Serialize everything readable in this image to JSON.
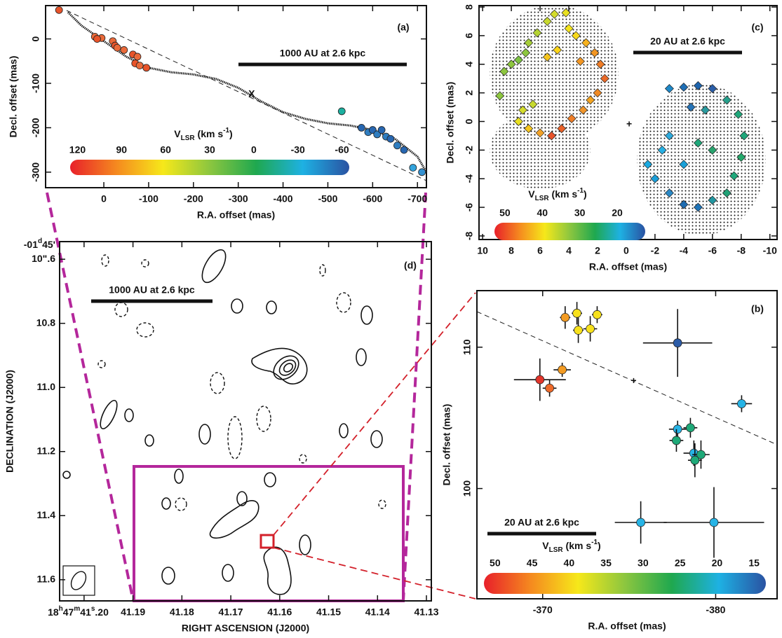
{
  "chart_data": [
    {
      "type": "scatter",
      "panel_label": "(a)",
      "xlabel": "R.A. offset (mas)",
      "ylabel": "Decl. offset (mas)",
      "xlim": [
        130,
        -720
      ],
      "ylim": [
        -335,
        75
      ],
      "xticks": [
        0,
        -100,
        -200,
        -300,
        -400,
        -500,
        -600,
        -700
      ],
      "yticks": [
        0,
        -100,
        -200,
        -300
      ],
      "x": [
        100,
        20,
        5,
        15,
        -20,
        -25,
        -30,
        -45,
        -65,
        -75,
        -70,
        -80,
        -95,
        -531,
        -575,
        -590,
        -600,
        -610,
        -620,
        -630,
        -640,
        -655,
        -670,
        -690,
        -710
      ],
      "values": [
        65,
        5,
        2,
        0,
        -5,
        -15,
        -20,
        -25,
        -35,
        -40,
        -55,
        -60,
        -65,
        -163,
        -200,
        -210,
        -205,
        -215,
        -205,
        -220,
        -225,
        -240,
        -250,
        -290,
        -300
      ],
      "colors": [
        "#e8542a",
        "#ea6a3a",
        "#ea6a3a",
        "#e8542a",
        "#ea6a3a",
        "#e8542a",
        "#ea6a3a",
        "#ea6a3a",
        "#e8542a",
        "#ea6a3a",
        "#e8542a",
        "#ea6a3a",
        "#e8542a",
        "#1bb0a0",
        "#2766b0",
        "#2f7dc0",
        "#2766b0",
        "#2f7dc0",
        "#2766b0",
        "#2f7dc0",
        "#2766b0",
        "#2f7dc0",
        "#2766b0",
        "#33a3dc",
        "#3390d0"
      ],
      "model": {
        "x": [
          80,
          50,
          0,
          -50,
          -100,
          -150,
          -200,
          -250,
          -300,
          -350,
          -400,
          -450,
          -500,
          -550,
          -600,
          -650,
          -700,
          -720
        ],
        "values": [
          60,
          30,
          -5,
          -40,
          -65,
          -75,
          -80,
          -90,
          -110,
          -140,
          -165,
          -180,
          -190,
          -195,
          -205,
          -225,
          -265,
          -300
        ]
      },
      "center_marker": {
        "label": "X",
        "x": -330,
        "y": -125
      },
      "scalebar": "1000 AU at 2.6 kpc",
      "colorbar": {
        "label": [
          "V",
          "LSR",
          " (km s",
          "-1",
          ")"
        ],
        "lim": [
          125,
          -65
        ],
        "ticks": [
          120,
          90,
          60,
          30,
          0,
          -30,
          -60
        ],
        "colors": [
          "#e8202a",
          "#f58a1f",
          "#f6e81a",
          "#8cc63f",
          "#1fa84f",
          "#1eb1e3",
          "#2a52a2"
        ]
      }
    },
    {
      "type": "errorbar",
      "panel_label": "(b)",
      "xlabel": "R.A. offset (mas)",
      "ylabel": "Decl. offset (mas)",
      "xlim": [
        -366.2,
        -383.55
      ],
      "ylim": [
        92.2,
        114
      ],
      "xticks": [
        -370,
        -380
      ],
      "yticks": [
        100,
        110
      ],
      "x": [
        -371.98,
        -371.3,
        -372.75,
        -372.06,
        -373.15,
        -371.13,
        -369.84,
        -370.4,
        -377.8,
        -381.5,
        -377.8,
        -378.54,
        -377.73,
        -378.74,
        -379.15,
        -378.8,
        -375.67,
        -379.9
      ],
      "values": [
        112.4,
        112.1,
        111.3,
        111.2,
        112.3,
        108.4,
        107.7,
        107.1,
        110.3,
        106.0,
        104.2,
        104.3,
        103.4,
        102.5,
        102.4,
        102.0,
        97.6,
        97.6
      ],
      "xerr": [
        0.3,
        0.3,
        0.4,
        0.3,
        0.3,
        0.5,
        1.5,
        0.4,
        2.0,
        0.6,
        0.5,
        0.4,
        0.4,
        0.6,
        0.5,
        0.4,
        1.5,
        2.9
      ],
      "yerr": [
        0.8,
        0.8,
        0.9,
        0.9,
        0.6,
        0.5,
        1.5,
        0.6,
        2.4,
        0.6,
        0.6,
        0.7,
        0.8,
        0.9,
        1.0,
        1.2,
        1.5,
        2.5
      ],
      "colors": [
        "#f7e11c",
        "#f39b22",
        "#f7e11c",
        "#f7e11c",
        "#f7e11c",
        "#f39b22",
        "#e2352b",
        "#ee6a2a",
        "#2c5ca8",
        "#27b4e6",
        "#27b4e6",
        "#1ea978",
        "#1ea978",
        "#27b4e6",
        "#1ea978",
        "#1ea978",
        "#27b4e6",
        "#27b4e6"
      ],
      "center_marker": {
        "label": "+",
        "x": -375.26,
        "y": 107.6
      },
      "scalebar": "20 AU at 2.6 kpc",
      "colorbar": {
        "label": [
          "V",
          "LSR",
          " (km s",
          "-1",
          ")"
        ],
        "lim": [
          51.5,
          13.4
        ],
        "ticks": [
          50,
          45,
          40,
          35,
          30,
          25,
          20,
          15
        ],
        "colors": [
          "#e8202a",
          "#f58a1f",
          "#f6e81a",
          "#8cc63f",
          "#1fa84f",
          "#1eb1e3",
          "#2a52a2"
        ]
      }
    },
    {
      "type": "diamond",
      "panel_label": "(c)",
      "xlabel": "R.A. offset (mas)",
      "ylabel": "Decl. offset (mas)",
      "xlim": [
        10.25,
        -10.5
      ],
      "ylim": [
        -8.25,
        8.1
      ],
      "xticks": [
        10,
        8,
        6,
        4,
        2,
        0,
        -2,
        -4,
        -6,
        -8,
        -10
      ],
      "yticks": [
        8,
        6,
        4,
        2,
        0,
        -2,
        -4,
        -6,
        -8
      ],
      "x": [
        8.5,
        8.0,
        7.5,
        7.0,
        6.8,
        6.2,
        5.5,
        5.0,
        4.2,
        4.0,
        3.5,
        2.8,
        2.2,
        1.8,
        1.5,
        2.0,
        2.5,
        3.0,
        3.8,
        4.5,
        5.2,
        6.0,
        6.8,
        7.5,
        7.2,
        6.5,
        5.5,
        4.8,
        3.2,
        8.8,
        -3.0,
        -4.0,
        -5.0,
        -6.0,
        -7.0,
        -7.8,
        -8.2,
        -8.0,
        -7.5,
        -7.0,
        -6.0,
        -5.0,
        -4.0,
        -3.0,
        -2.0,
        -1.5,
        -2.5,
        -3.0,
        -4.5,
        -5.5,
        -6.0,
        -5.0,
        -4.0
      ],
      "values": [
        3.5,
        4.0,
        4.3,
        4.8,
        5.5,
        6.2,
        7.0,
        7.5,
        7.6,
        6.5,
        6.0,
        5.5,
        4.8,
        4.0,
        3.0,
        2.0,
        1.5,
        0.8,
        0.2,
        -0.5,
        -1.0,
        -0.8,
        -0.5,
        0.0,
        0.8,
        1.2,
        4.5,
        5.0,
        4.2,
        1.8,
        2.3,
        2.4,
        2.5,
        2.3,
        1.5,
        0.5,
        -1.0,
        -2.5,
        -3.8,
        -5.0,
        -5.5,
        -6.0,
        -5.8,
        -5.0,
        -4.0,
        -3.0,
        -2.0,
        -1.0,
        1.0,
        0.8,
        -2.0,
        -1.5,
        -3.0
      ],
      "colors": [
        "#8dc63f",
        "#8dc63f",
        "#7cc242",
        "#8dc63f",
        "#a6ce39",
        "#b5d334",
        "#c7d92f",
        "#d4dc2c",
        "#e8e021",
        "#f3e31b",
        "#f8d91a",
        "#f7b21f",
        "#f29623",
        "#ee7c26",
        "#ea6a28",
        "#f08a24",
        "#f4a421",
        "#f0952a",
        "#ee7d27",
        "#e96128",
        "#e7522a",
        "#f0a127",
        "#f5c51e",
        "#e8e021",
        "#d4dc2c",
        "#c7d92f",
        "#f5c51e",
        "#fcd519",
        "#f29623",
        "#8dc63f",
        "#1e88c8",
        "#1f6fb5",
        "#1d64ad",
        "#2a5ea8",
        "#26a08c",
        "#1fa77a",
        "#1fa77a",
        "#23a86a",
        "#1fa77a",
        "#21a176",
        "#2196a0",
        "#1e73b7",
        "#1e6cb1",
        "#2a88c5",
        "#1b9fd9",
        "#1aa9e0",
        "#26b0e4",
        "#2eaadc",
        "#2673b7",
        "#2a9b9f",
        "#28a36e",
        "#1fa77a",
        "#19a0d8"
      ],
      "center_marker": {
        "label": "+",
        "x": -0.2,
        "y": -0.2
      },
      "scalebar": "20 AU at 2.6 kpc",
      "colorbar": {
        "label": [
          "V",
          "LSR",
          " (km s",
          "-1",
          ")"
        ],
        "lim": [
          52.8,
          12.5
        ],
        "ticks": [
          50,
          40,
          30,
          20
        ],
        "colors": [
          "#e8202a",
          "#f58a1f",
          "#f6e81a",
          "#8cc63f",
          "#1fa84f",
          "#1eb1e3",
          "#2a52a2"
        ]
      }
    },
    {
      "type": "contour",
      "panel_label": "(d)",
      "xlabel": "RIGHT ASCENSION (J2000)",
      "ylabel": "DECLINATION (J2000)",
      "xlim": [
        41.205,
        41.129
      ],
      "ylim": [
        11.666,
        10.545
      ],
      "xticks": [
        {
          "value": 41.2,
          "label": [
            "18",
            "h",
            "47",
            "m",
            "41",
            "s",
            ".20"
          ]
        },
        41.19,
        41.18,
        41.17,
        41.16,
        41.15,
        41.14,
        41.13
      ],
      "yticks": [
        {
          "value": 10.6,
          "label": "10\".6"
        },
        {
          "value": 10.8,
          "label": "10.8"
        },
        {
          "value": 11.0,
          "label": "11.0"
        },
        {
          "value": 11.2,
          "label": "11.2"
        },
        {
          "value": 11.4,
          "label": "11.4"
        },
        {
          "value": 11.6,
          "label": "11.6"
        }
      ],
      "y_header": [
        "-01",
        "d",
        "45'"
      ],
      "scalebar": "1000 AU at 2.6 kpc"
    }
  ]
}
